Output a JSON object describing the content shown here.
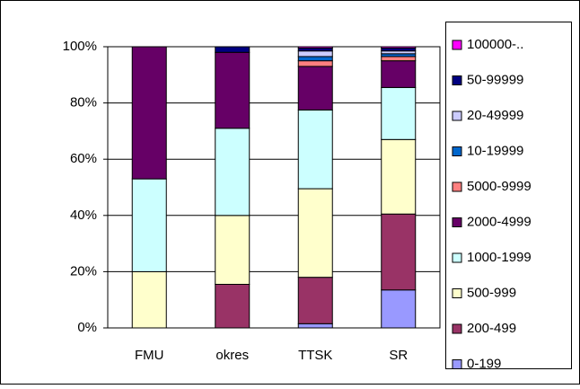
{
  "chart_data": {
    "type": "stacked_bar_100",
    "categories": [
      "FMU",
      "okres",
      "TTSK",
      "SR"
    ],
    "series": [
      {
        "name": "0-199",
        "color": "#9999ff",
        "values": [
          0,
          0,
          1.5,
          13.5
        ]
      },
      {
        "name": "200-499",
        "color": "#993366",
        "values": [
          0,
          15.5,
          16.5,
          27
        ]
      },
      {
        "name": "500-999",
        "color": "#ffffcc",
        "values": [
          20,
          24.5,
          31.5,
          26.5
        ]
      },
      {
        "name": "1000-1999",
        "color": "#ccffff",
        "values": [
          33,
          31,
          28,
          18.5
        ]
      },
      {
        "name": "2000-4999",
        "color": "#660066",
        "values": [
          47,
          27,
          15.5,
          9.5
        ]
      },
      {
        "name": "5000-9999",
        "color": "#ff8080",
        "values": [
          0,
          0,
          2,
          1.5
        ]
      },
      {
        "name": "10-19999",
        "color": "#0066cc",
        "values": [
          0,
          0,
          1.5,
          1
        ]
      },
      {
        "name": "20-49999",
        "color": "#ccccff",
        "values": [
          0,
          0,
          2,
          1
        ]
      },
      {
        "name": "50-99999",
        "color": "#000080",
        "values": [
          0,
          2,
          1,
          1
        ]
      },
      {
        "name": "100000-..",
        "color": "#ff00ff",
        "values": [
          0,
          0,
          0.5,
          0.5
        ]
      }
    ],
    "ylim": [
      0,
      100
    ],
    "yticks": [
      {
        "value": 0,
        "label": "0%"
      },
      {
        "value": 20,
        "label": "20%"
      },
      {
        "value": 40,
        "label": "40%"
      },
      {
        "value": 60,
        "label": "60%"
      },
      {
        "value": 80,
        "label": "80%"
      },
      {
        "value": 100,
        "label": "100%"
      }
    ],
    "grid": true,
    "legend": "right"
  }
}
